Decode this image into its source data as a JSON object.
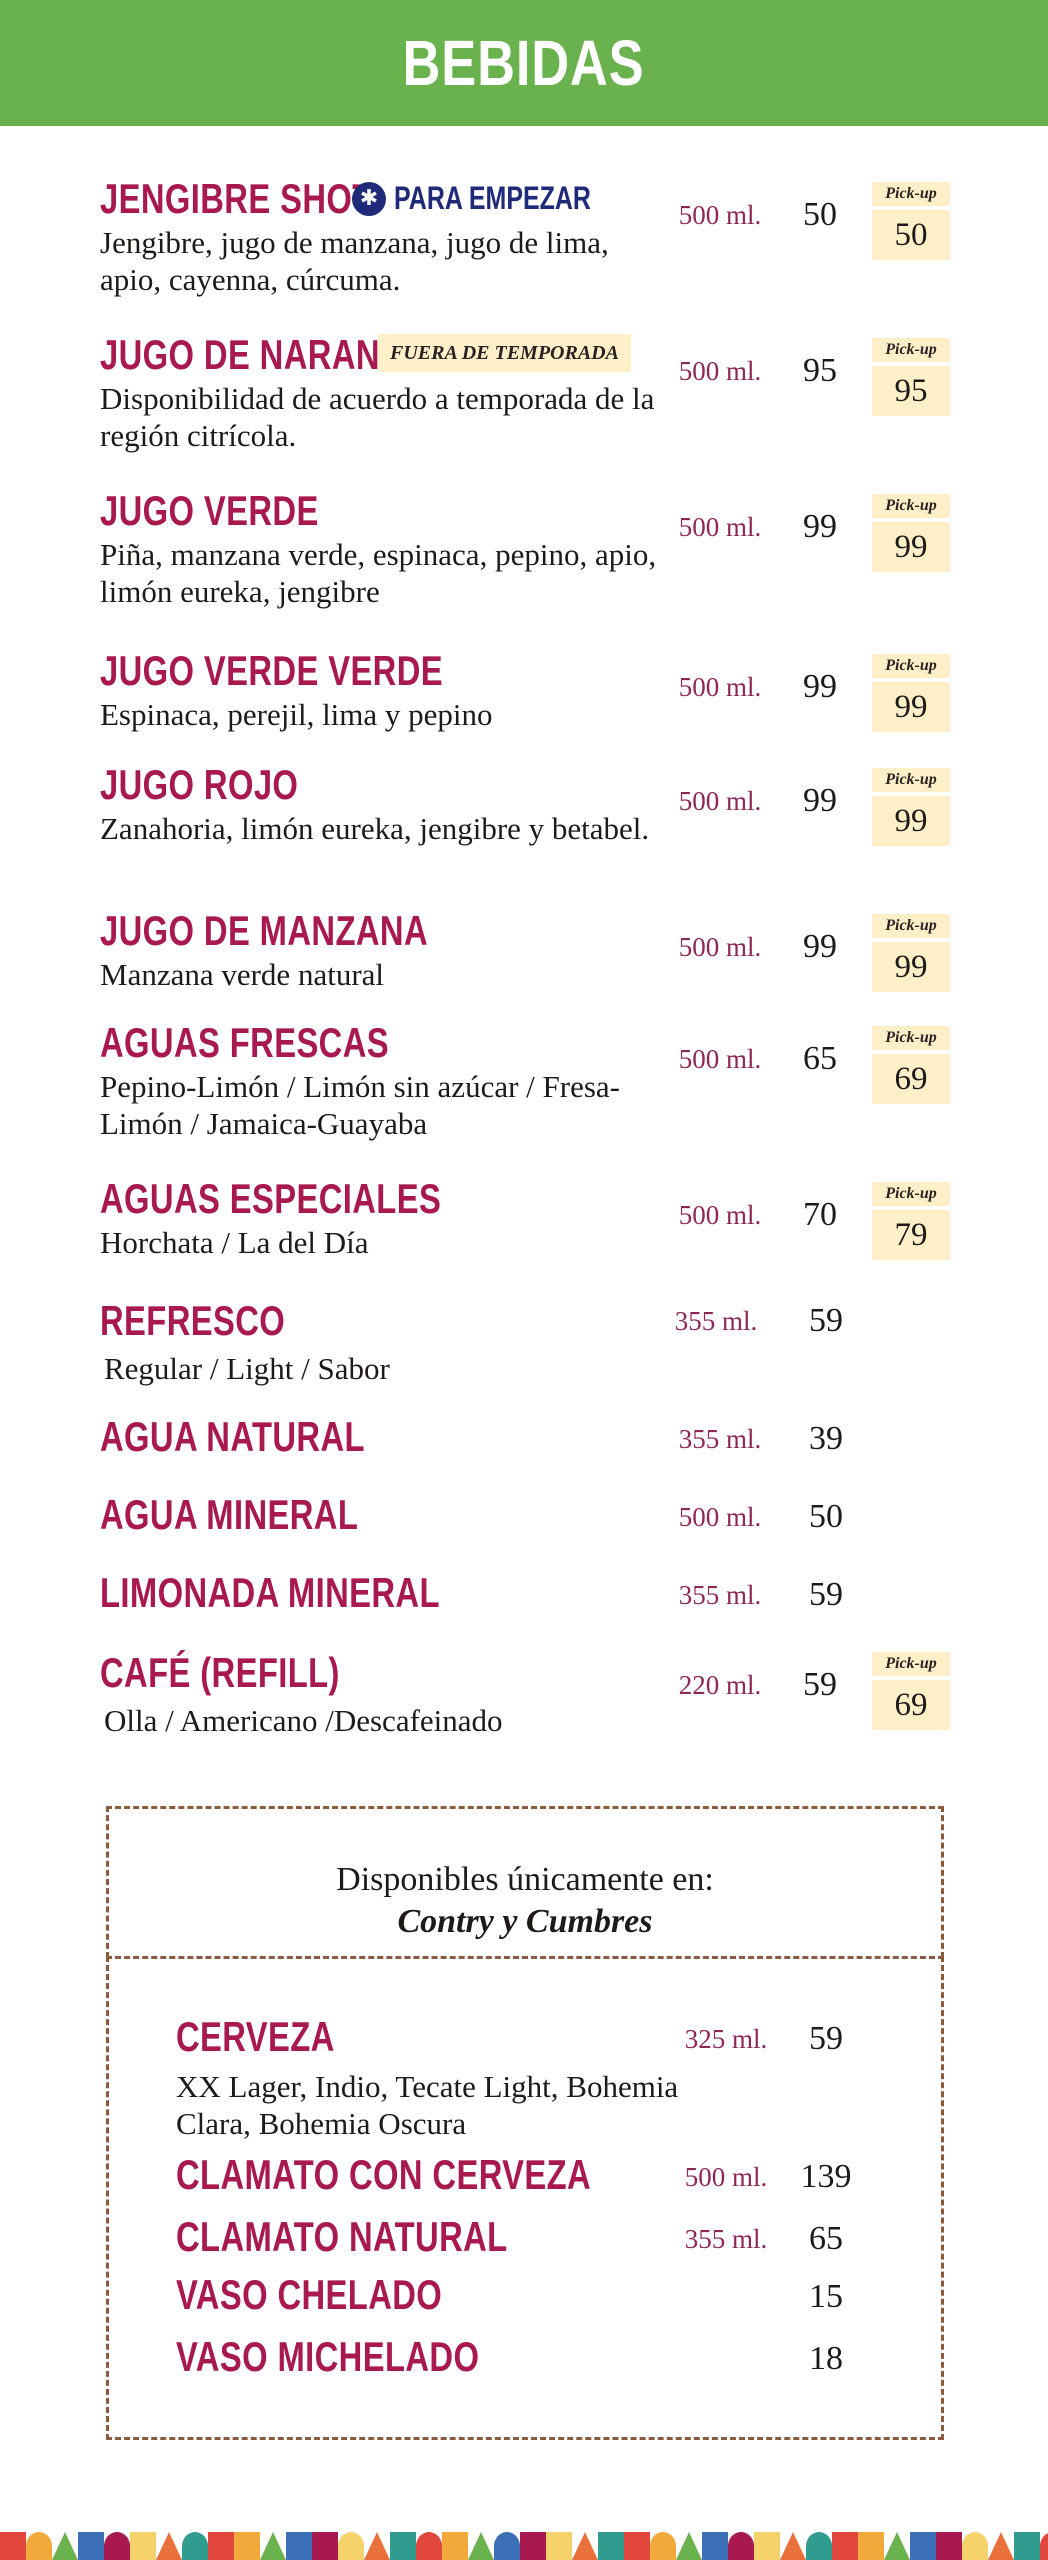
{
  "header": {
    "title": "BEBIDAS"
  },
  "items": [
    {
      "name": "JENGIBRE SHOT",
      "tag": "PARA EMPEZAR",
      "desc": "Jengibre, jugo de manzana, jugo de lima, apio, cayenna, cúrcuma.",
      "size": "500 ml.",
      "price": "50",
      "pickup_label": "Pick-up",
      "pickup_price": "50"
    },
    {
      "name": "JUGO DE NARANJA",
      "tag": "FUERA DE TEMPORADA",
      "desc": "Disponibilidad de acuerdo a temporada de la región citrícola.",
      "size": "500 ml.",
      "price": "95",
      "pickup_label": "Pick-up",
      "pickup_price": "95"
    },
    {
      "name": "JUGO VERDE",
      "desc": "Piña, manzana verde, espinaca, pepino, apio, limón eureka, jengibre",
      "size": "500 ml.",
      "price": "99",
      "pickup_label": "Pick-up",
      "pickup_price": "99"
    },
    {
      "name": "JUGO VERDE VERDE",
      "desc": "Espinaca, perejil, lima y pepino",
      "size": "500 ml.",
      "price": "99",
      "pickup_label": "Pick-up",
      "pickup_price": "99"
    },
    {
      "name": "JUGO ROJO",
      "desc": "Zanahoria, limón eureka, jengibre y betabel.",
      "size": "500 ml.",
      "price": "99",
      "pickup_label": "Pick-up",
      "pickup_price": "99"
    },
    {
      "name": "JUGO DE MANZANA",
      "desc": "Manzana verde natural",
      "size": "500 ml.",
      "price": "99",
      "pickup_label": "Pick-up",
      "pickup_price": "99"
    },
    {
      "name": "AGUAS FRESCAS",
      "desc": "Pepino-Limón / Limón sin azúcar / Fresa-Limón /  Jamaica-Guayaba",
      "size": "500 ml.",
      "price": "65",
      "pickup_label": "Pick-up",
      "pickup_price": "69"
    },
    {
      "name": "AGUAS ESPECIALES",
      "desc": "Horchata / La del Día",
      "size": "500 ml.",
      "price": "70",
      "pickup_label": "Pick-up",
      "pickup_price": "79"
    },
    {
      "name": "REFRESCO",
      "desc": "Regular / Light / Sabor",
      "size": "355 ml.",
      "price": "59"
    },
    {
      "name": "AGUA NATURAL",
      "size": "355 ml.",
      "price": "39"
    },
    {
      "name": "AGUA MINERAL",
      "size": "500 ml.",
      "price": "50"
    },
    {
      "name": "LIMONADA MINERAL",
      "size": "355 ml.",
      "price": "59"
    },
    {
      "name": "CAFÉ (REFILL)",
      "desc": "Olla / Americano /Descafeinado",
      "size": "220 ml.",
      "price": "59",
      "pickup_label": "Pick-up",
      "pickup_price": "69"
    }
  ],
  "box": {
    "line1": "Disponibles únicamente en:",
    "line2": "Contry y Cumbres",
    "items": [
      {
        "name": "CERVEZA",
        "desc": "XX Lager, Indio, Tecate Light, Bohemia Clara, Bohemia Oscura",
        "size": "325 ml.",
        "price": "59"
      },
      {
        "name": "CLAMATO CON CERVEZA",
        "size": "500 ml.",
        "price": "139"
      },
      {
        "name": "CLAMATO NATURAL",
        "size": "355 ml.",
        "price": "65"
      },
      {
        "name": "VASO CHELADO",
        "price": "15"
      },
      {
        "name": "VASO MICHELADO",
        "price": "18"
      }
    ]
  },
  "colors": {
    "header_green": "#6ab24e",
    "item_name": "#a8194f",
    "tag_blue": "#1f2a78",
    "pickup_bg": "#fdf0c8",
    "border_brown": "#8a5a3c"
  },
  "icons": {
    "tag_empezar": "asterisk-circle-icon"
  }
}
